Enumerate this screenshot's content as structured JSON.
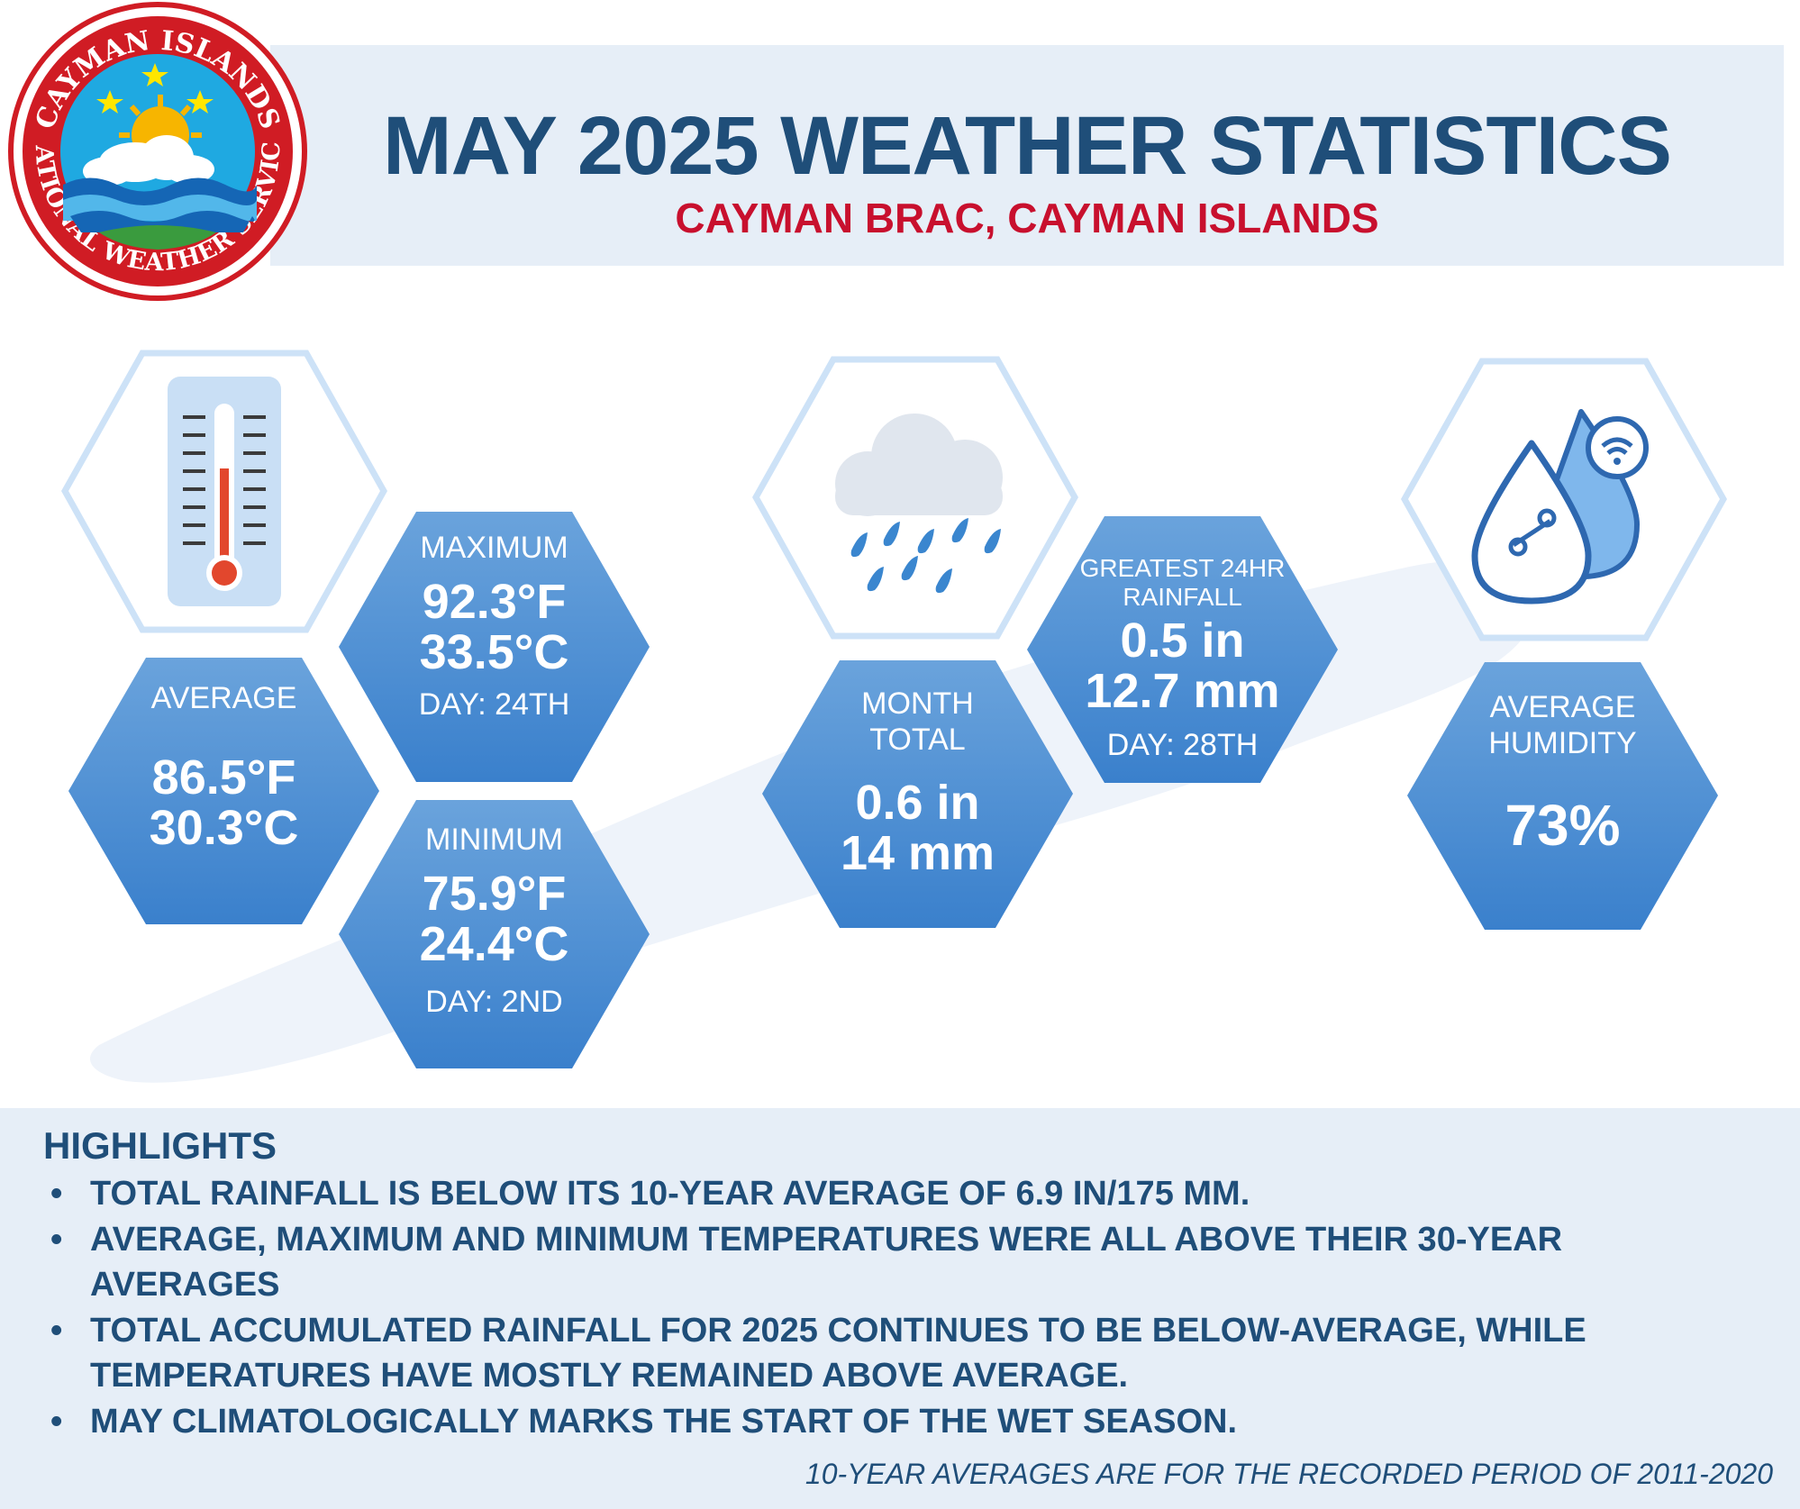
{
  "header": {
    "title": "MAY 2025 WEATHER STATISTICS",
    "subtitle": "CAYMAN BRAC, CAYMAN ISLANDS"
  },
  "logo": {
    "top_text": "CAYMAN ISLANDS",
    "bottom_text": "NATIONAL WEATHER SERVICE"
  },
  "colors": {
    "title": "#1f4e79",
    "subtitle": "#c8102e",
    "hex_top": "#6aa3dc",
    "hex_bottom": "#3d83cf",
    "band": "#e6eef7"
  },
  "icons": [
    "thermometer-icon",
    "rain-cloud-icon",
    "humidity-drops-icon"
  ],
  "temperature": {
    "average": {
      "label": "AVERAGE",
      "value_f": "86.5°F",
      "value_c": "30.3°C"
    },
    "maximum": {
      "label": "MAXIMUM",
      "value_f": "92.3°F",
      "value_c": "33.5°C",
      "day": "DAY: 24TH"
    },
    "minimum": {
      "label": "MINIMUM",
      "value_f": "75.9°F",
      "value_c": "24.4°C",
      "day": "DAY: 2ND"
    }
  },
  "rainfall": {
    "month_total": {
      "label_1": "MONTH",
      "label_2": "TOTAL",
      "value_in": "0.6 in",
      "value_mm": "14 mm"
    },
    "greatest_24hr": {
      "label_1": "GREATEST 24HR",
      "label_2": "RAINFALL",
      "value_in": "0.5 in",
      "value_mm": "12.7 mm",
      "day": "DAY: 28TH"
    }
  },
  "humidity": {
    "label_1": "AVERAGE",
    "label_2": "HUMIDITY",
    "value": "73%"
  },
  "highlights": {
    "title": "HIGHLIGHTS",
    "bullet": "•",
    "items": [
      "TOTAL RAINFALL IS BELOW ITS 10-YEAR AVERAGE OF 6.9 IN/175 MM.",
      "AVERAGE, MAXIMUM AND MINIMUM TEMPERATURES WERE ALL ABOVE THEIR 30-YEAR AVERAGES",
      "TOTAL ACCUMULATED RAINFALL FOR 2025 CONTINUES TO BE BELOW-AVERAGE, WHILE TEMPERATURES HAVE MOSTLY REMAINED ABOVE AVERAGE.",
      "MAY CLIMATOLOGICALLY MARKS THE START OF THE WET SEASON."
    ],
    "footnote": "10-YEAR AVERAGES ARE FOR THE RECORDED PERIOD OF 2011-2020"
  }
}
